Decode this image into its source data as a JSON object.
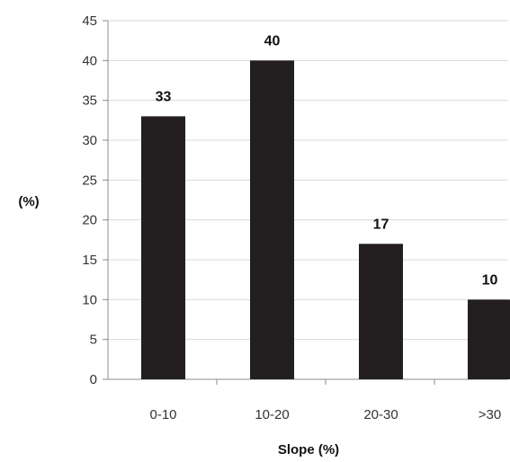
{
  "chart_data": {
    "type": "bar",
    "categories": [
      "0-10",
      "10-20",
      "20-30",
      ">30"
    ],
    "values": [
      33,
      40,
      17,
      10
    ],
    "data_labels": [
      "33",
      "40",
      "17",
      "10"
    ],
    "title": "",
    "xlabel": "Slope (%)",
    "ylabel": "(%)",
    "ylim": [
      0,
      45
    ],
    "yticks": [
      "0",
      "5",
      "10",
      "15",
      "20",
      "25",
      "30",
      "35",
      "40",
      "45"
    ],
    "grid": "horizontal",
    "legend": "none",
    "colors": {
      "bar": "#231f20",
      "grid": "#d9d9d9",
      "axis": "#8c8c8c"
    }
  }
}
